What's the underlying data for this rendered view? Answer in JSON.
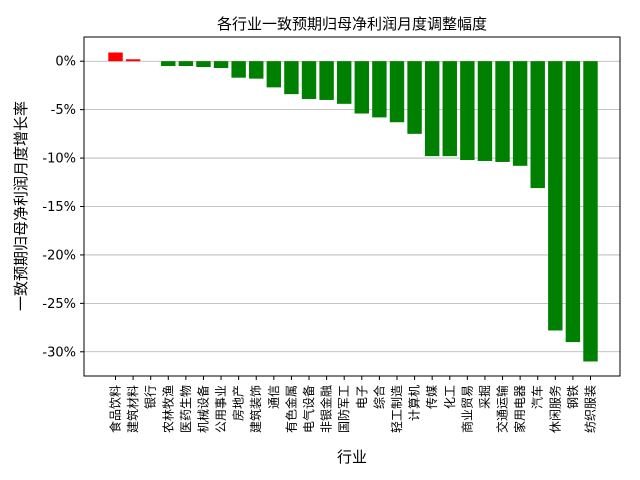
{
  "chart_data": {
    "type": "bar",
    "title": "各行业一致预期归母净利润月度调整幅度",
    "xlabel": "行业",
    "ylabel": "一致预期归母净利润月度增长率",
    "ylim": [
      -32.5,
      2.5
    ],
    "y_ticks": [
      0,
      -5,
      -10,
      -15,
      -20,
      -25,
      -30
    ],
    "y_tick_labels": [
      "0%",
      "-5%",
      "-10%",
      "-15%",
      "-20%",
      "-25%",
      "-30%"
    ],
    "grid": "horizontal",
    "positive_color": "#ff0000",
    "negative_color": "#008000",
    "categories": [
      "食品饮料",
      "建筑材料",
      "银行",
      "农林牧渔",
      "医药生物",
      "机械设备",
      "公用事业",
      "房地产",
      "建筑装饰",
      "通信",
      "有色金属",
      "电气设备",
      "非银金融",
      "国防军工",
      "电子",
      "综合",
      "轻工制造",
      "计算机",
      "传媒",
      "化工",
      "商业贸易",
      "采掘",
      "交通运输",
      "家用电器",
      "汽车",
      "休闲服务",
      "钢铁",
      "纺织服装"
    ],
    "values": [
      0.9,
      0.2,
      0.0,
      -0.5,
      -0.5,
      -0.6,
      -0.7,
      -1.7,
      -1.8,
      -2.7,
      -3.4,
      -3.9,
      -4.0,
      -4.4,
      -5.4,
      -5.8,
      -6.3,
      -7.5,
      -9.8,
      -9.8,
      -10.2,
      -10.3,
      -10.4,
      -10.8,
      -13.1,
      -27.8,
      -29.0,
      -31.0
    ]
  }
}
